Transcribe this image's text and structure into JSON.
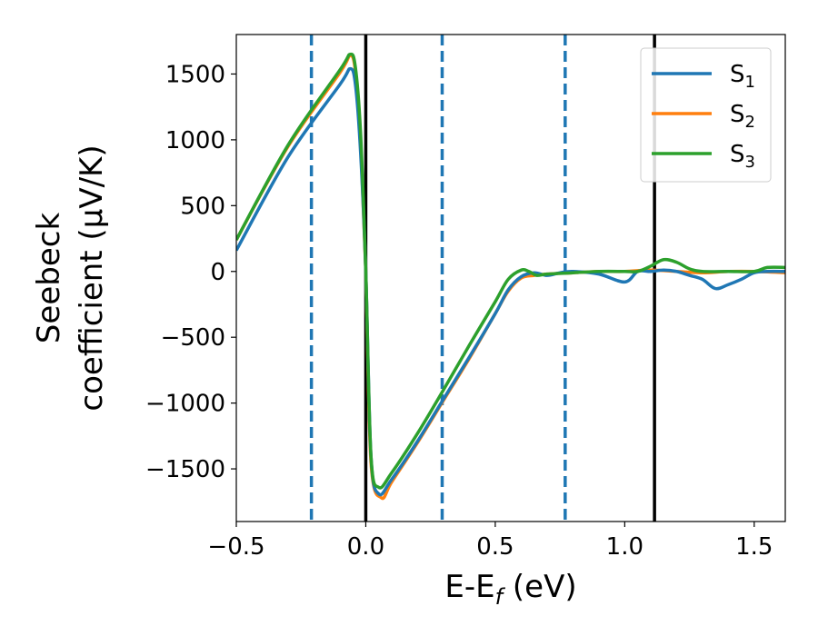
{
  "chart_data": {
    "type": "line",
    "xlabel": "E-E",
    "xlabel_sub": "f",
    "xlabel_unit": " (eV)",
    "ylabel_line1": "Seebeck",
    "ylabel_line2": "coefficient  (μV/K)",
    "xlim": [
      -0.5,
      1.62
    ],
    "ylim": [
      -1900,
      1800
    ],
    "xticks": [
      -0.5,
      0.0,
      0.5,
      1.0,
      1.5
    ],
    "xtick_labels": [
      "−0.5",
      "0.0",
      "0.5",
      "1.0",
      "1.5"
    ],
    "yticks": [
      -1500,
      -1000,
      -500,
      0,
      500,
      1000,
      1500
    ],
    "ytick_labels": [
      "−1500",
      "−1000",
      "−500",
      "0",
      "500",
      "1000",
      "1500"
    ],
    "grid": false,
    "legend_position": "top-right",
    "vlines_solid": [
      0.0,
      1.115
    ],
    "vlines_dashed": [
      -0.21,
      0.295,
      0.77
    ],
    "vline_solid_color": "#000000",
    "vline_dashed_color": "#1f77b4",
    "series": [
      {
        "name": "S",
        "sub": "1",
        "color": "#1f77b4",
        "x": [
          -0.5,
          -0.3,
          -0.1,
          -0.06,
          -0.04,
          -0.02,
          0.0,
          0.02,
          0.05,
          0.1,
          0.2,
          0.3,
          0.4,
          0.5,
          0.55,
          0.6,
          0.65,
          0.7,
          0.75,
          0.8,
          0.9,
          1.0,
          1.05,
          1.1,
          1.15,
          1.2,
          1.25,
          1.3,
          1.35,
          1.4,
          1.45,
          1.5,
          1.55,
          1.62
        ],
        "y": [
          160,
          870,
          1420,
          1540,
          1420,
          900,
          0,
          -1400,
          -1690,
          -1580,
          -1290,
          -970,
          -650,
          -320,
          -140,
          -40,
          -10,
          -30,
          -10,
          0,
          -20,
          -80,
          0,
          0,
          10,
          0,
          -30,
          -60,
          -130,
          -100,
          -60,
          -10,
          0,
          0
        ]
      },
      {
        "name": "S",
        "sub": "2",
        "color": "#ff7f0e",
        "x": [
          -0.5,
          -0.3,
          -0.1,
          -0.06,
          -0.04,
          -0.02,
          0.0,
          0.02,
          0.06,
          0.1,
          0.2,
          0.3,
          0.4,
          0.5,
          0.55,
          0.6,
          0.65,
          0.7,
          0.8,
          0.9,
          1.0,
          1.1,
          1.2,
          1.3,
          1.4,
          1.5,
          1.62
        ],
        "y": [
          240,
          950,
          1510,
          1640,
          1520,
          1000,
          0,
          -1450,
          -1720,
          -1600,
          -1300,
          -980,
          -660,
          -320,
          -150,
          -50,
          -30,
          -20,
          -10,
          0,
          0,
          10,
          0,
          -10,
          0,
          0,
          -10
        ]
      },
      {
        "name": "S",
        "sub": "3",
        "color": "#2ca02c",
        "x": [
          -0.5,
          -0.3,
          -0.1,
          -0.06,
          -0.04,
          -0.02,
          0.0,
          0.02,
          0.05,
          0.1,
          0.2,
          0.3,
          0.4,
          0.5,
          0.55,
          0.6,
          0.63,
          0.66,
          0.7,
          0.8,
          0.9,
          1.0,
          1.05,
          1.1,
          1.15,
          1.2,
          1.25,
          1.3,
          1.4,
          1.5,
          1.55,
          1.62
        ],
        "y": [
          240,
          960,
          1530,
          1650,
          1550,
          1050,
          0,
          -1400,
          -1640,
          -1530,
          -1230,
          -900,
          -560,
          -230,
          -60,
          10,
          0,
          -30,
          -20,
          -10,
          0,
          0,
          0,
          40,
          90,
          70,
          20,
          0,
          0,
          0,
          30,
          30
        ]
      }
    ]
  }
}
